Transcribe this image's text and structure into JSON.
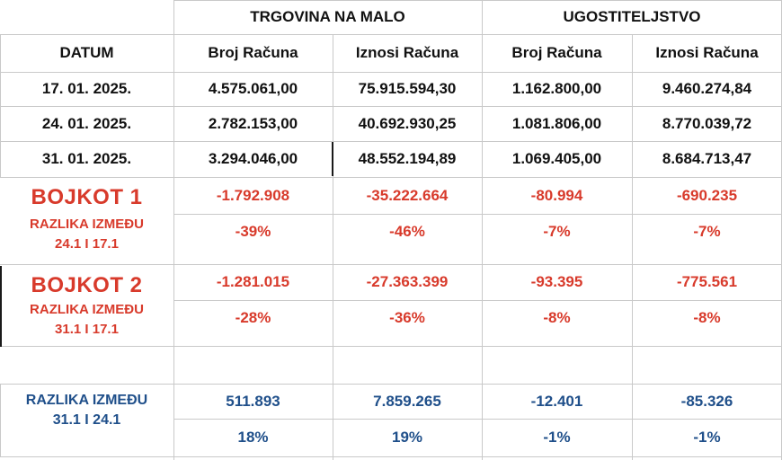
{
  "header": {
    "group1": "TRGOVINA NA MALO",
    "group2": "UGOSTITELJSTVO",
    "datum": "DATUM",
    "col_broj": "Broj Računa",
    "col_iznosi": "Iznosi Računa"
  },
  "rows": [
    {
      "date": "17. 01. 2025.",
      "v1": "4.575.061,00",
      "v2": "75.915.594,30",
      "v3": "1.162.800,00",
      "v4": "9.460.274,84"
    },
    {
      "date": "24. 01. 2025.",
      "v1": "2.782.153,00",
      "v2": "40.692.930,25",
      "v3": "1.081.806,00",
      "v4": "8.770.039,72"
    },
    {
      "date": "31. 01. 2025.",
      "v1": "3.294.046,00",
      "v2": "48.552.194,89",
      "v3": "1.069.405,00",
      "v4": "8.684.713,47"
    }
  ],
  "boycott1": {
    "title": "BOJKOT 1",
    "sub_line1": "RAZLIKA IZMEĐU",
    "sub_line2": "24.1 I 17.1",
    "diff": [
      "-1.792.908",
      "-35.222.664",
      "-80.994",
      "-690.235"
    ],
    "pct": [
      "-39%",
      "-46%",
      "-7%",
      "-7%"
    ]
  },
  "boycott2": {
    "title": "BOJKOT 2",
    "sub_line1": "RAZLIKA IZMEĐU",
    "sub_line2": "31.1 I 17.1",
    "diff": [
      "-1.281.015",
      "-27.363.399",
      "-93.395",
      "-775.561"
    ],
    "pct": [
      "-28%",
      "-36%",
      "-8%",
      "-8%"
    ]
  },
  "compare": {
    "line1": "RAZLIKA IZMEĐU",
    "line2": "31.1 I 24.1",
    "diff": [
      "511.893",
      "7.859.265",
      "-12.401",
      "-85.326"
    ],
    "pct": [
      "18%",
      "19%",
      "-1%",
      "-1%"
    ]
  },
  "colors": {
    "negative": "#d83a2b",
    "comparison": "#1f4f8a",
    "text": "#111111"
  }
}
